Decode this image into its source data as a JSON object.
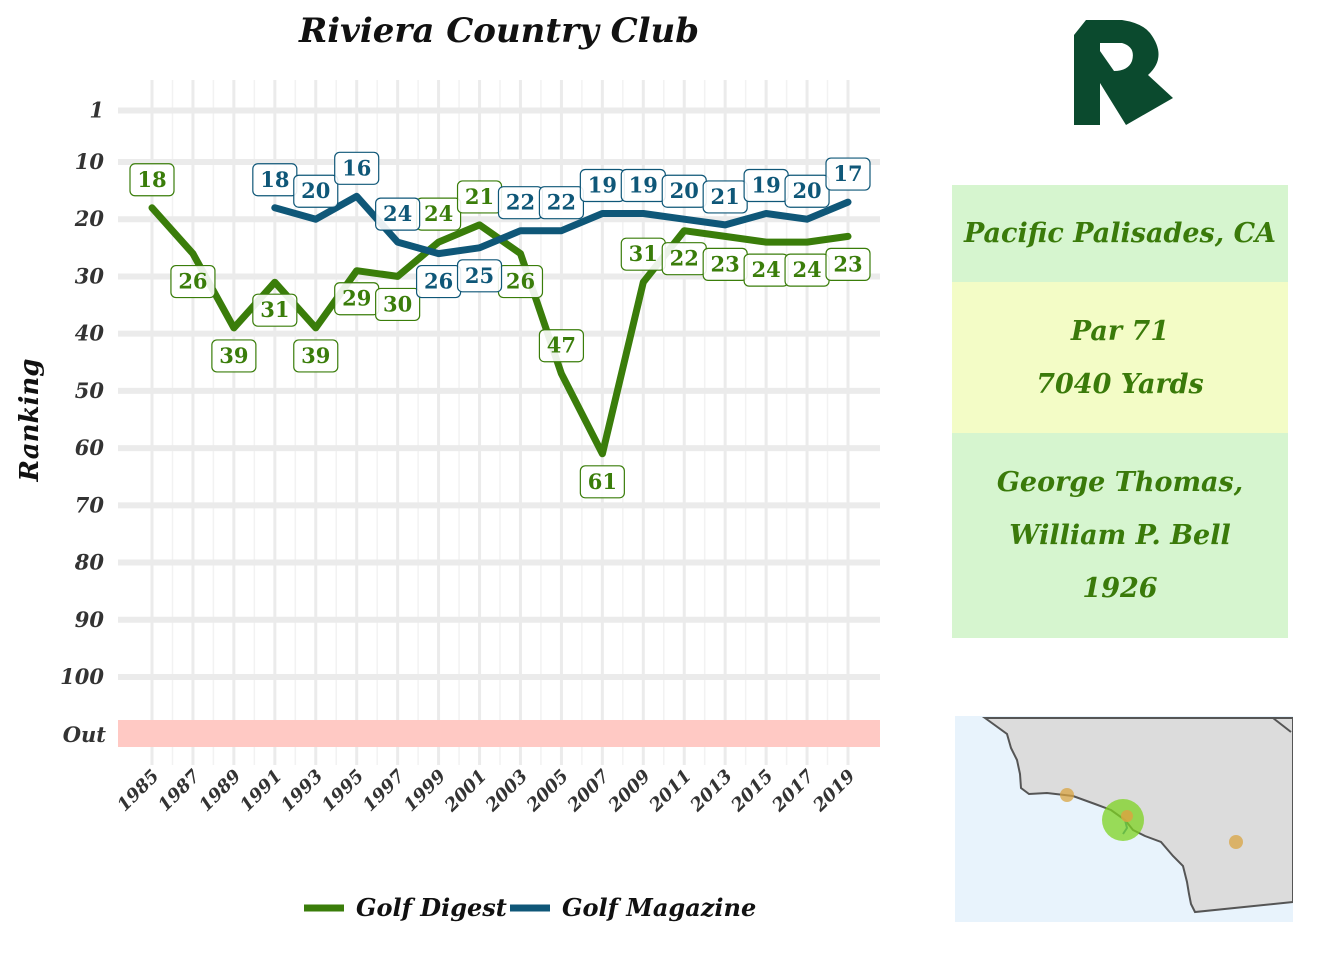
{
  "chart_data": {
    "type": "line",
    "title": "Riviera Country Club",
    "ylabel": "Ranking",
    "xlabel": "",
    "y_reversed": true,
    "y_ticks": [
      1,
      10,
      20,
      30,
      40,
      50,
      60,
      70,
      80,
      90,
      100
    ],
    "y_tick_labels": [
      "1",
      "10",
      "20",
      "30",
      "40",
      "50",
      "60",
      "70",
      "80",
      "90",
      "100"
    ],
    "out_label": "Out",
    "x_ticks": [
      1985,
      1987,
      1989,
      1991,
      1993,
      1995,
      1997,
      1999,
      2001,
      2003,
      2005,
      2007,
      2009,
      2011,
      2013,
      2015,
      2017,
      2019
    ],
    "x_tick_labels": [
      "1985",
      "1987",
      "1989",
      "1991",
      "1993",
      "1995",
      "1997",
      "1999",
      "2001",
      "2003",
      "2005",
      "2007",
      "2009",
      "2011",
      "2013",
      "2015",
      "2017",
      "2019"
    ],
    "legend_position": "bottom",
    "series": [
      {
        "name": "Golf Digest",
        "color": "#3a7d0a",
        "points": [
          {
            "x": 1985,
            "y": 18
          },
          {
            "x": 1987,
            "y": 26
          },
          {
            "x": 1989,
            "y": 39
          },
          {
            "x": 1991,
            "y": 31
          },
          {
            "x": 1993,
            "y": 39
          },
          {
            "x": 1995,
            "y": 29
          },
          {
            "x": 1997,
            "y": 30
          },
          {
            "x": 1999,
            "y": 24
          },
          {
            "x": 2001,
            "y": 21
          },
          {
            "x": 2003,
            "y": 26
          },
          {
            "x": 2005,
            "y": 47
          },
          {
            "x": 2007,
            "y": 61
          },
          {
            "x": 2009,
            "y": 31
          },
          {
            "x": 2011,
            "y": 22
          },
          {
            "x": 2013,
            "y": 23
          },
          {
            "x": 2015,
            "y": 24
          },
          {
            "x": 2017,
            "y": 24
          },
          {
            "x": 2019,
            "y": 23
          }
        ]
      },
      {
        "name": "Golf Magazine",
        "color": "#0f5778",
        "points": [
          {
            "x": 1991,
            "y": 18
          },
          {
            "x": 1993,
            "y": 20
          },
          {
            "x": 1995,
            "y": 16
          },
          {
            "x": 1997,
            "y": 24
          },
          {
            "x": 1999,
            "y": 26
          },
          {
            "x": 2001,
            "y": 25
          },
          {
            "x": 2003,
            "y": 22
          },
          {
            "x": 2005,
            "y": 22
          },
          {
            "x": 2007,
            "y": 19
          },
          {
            "x": 2009,
            "y": 19
          },
          {
            "x": 2011,
            "y": 20
          },
          {
            "x": 2013,
            "y": 21
          },
          {
            "x": 2015,
            "y": 19
          },
          {
            "x": 2017,
            "y": 20
          },
          {
            "x": 2019,
            "y": 17
          }
        ]
      }
    ]
  },
  "info": {
    "location": "Pacific Palisades, CA",
    "par": "Par 71",
    "yards": "7040 Yards",
    "designer_line1": "George Thomas,",
    "designer_line2": "William P. Bell",
    "year": "1926"
  },
  "colors": {
    "golf_digest": "#3a7d0a",
    "golf_magazine": "#0f5778",
    "out_band": "#ffc9c4",
    "logo": "#0b4a2e",
    "info_green": "#d6f5cf",
    "info_yellow": "#f3fcc6",
    "map_land": "#dcdcdc",
    "map_water": "#e8f3fc",
    "map_highlight": "#7ed321",
    "map_marker": "#d9a441"
  },
  "icons": {
    "logo": "riviera-r-logo",
    "map": "california-coast-map"
  }
}
